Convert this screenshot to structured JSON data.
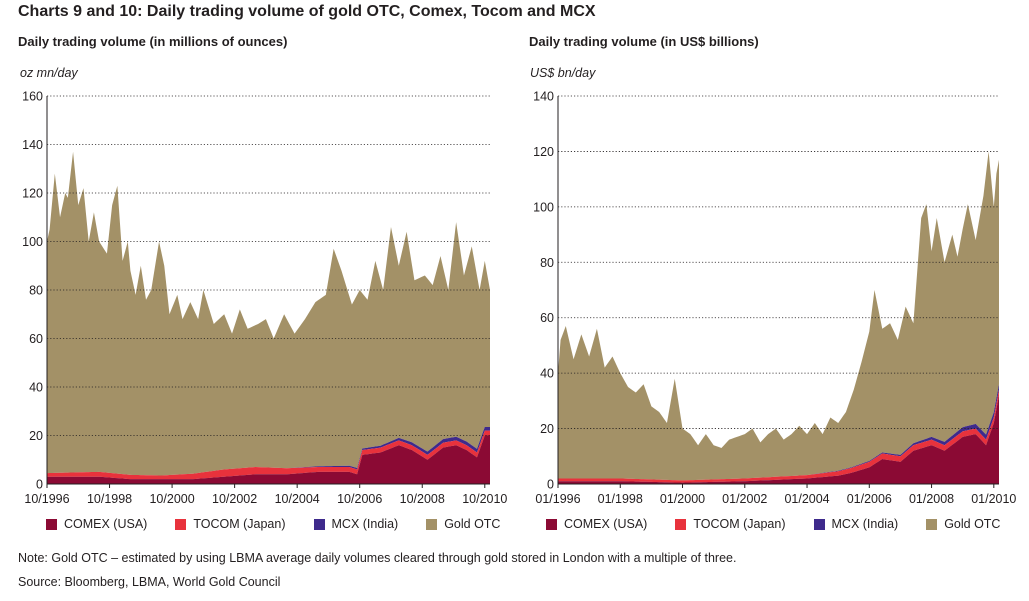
{
  "title": "Charts 9 and 10: Daily trading volume of gold OTC, Comex, Tocom and MCX",
  "note": "Note: Gold OTC – estimated by using LBMA average daily volumes cleared through gold stored in London with a multiple of three.",
  "source": "Source: Bloomberg, LBMA, World Gold Council",
  "colors": {
    "comex": "#8b0a34",
    "tocom": "#e8323c",
    "mcx": "#3e2a8c",
    "otc": "#a39167"
  },
  "legend": {
    "comex": "COMEX (USA)",
    "tocom": "TOCOM (Japan)",
    "mcx": "MCX (India)",
    "otc": "Gold OTC"
  },
  "chart_data": [
    {
      "type": "area",
      "stacked": true,
      "subtitle": "Daily trading volume (in millions of ounces)",
      "unit": "oz mn/day",
      "x_start": "1996-10",
      "x_end": "2010-12",
      "x_ticks": [
        "10/1996",
        "10/1998",
        "10/2000",
        "10/2002",
        "10/2004",
        "10/2006",
        "10/2008",
        "10/2010"
      ],
      "y_ticks": [
        0,
        20,
        40,
        60,
        80,
        100,
        120,
        140,
        160
      ],
      "ylim": [
        0,
        160
      ],
      "grid": "horizontal dotted",
      "series": [
        {
          "name": "COMEX (USA)",
          "key": "comex",
          "points": [
            [
              "1996-10",
              3
            ],
            [
              "1997-06",
              3
            ],
            [
              "1998-06",
              3
            ],
            [
              "1999-06",
              2
            ],
            [
              "2000-06",
              2
            ],
            [
              "2001-06",
              2
            ],
            [
              "2002-06",
              3
            ],
            [
              "2003-06",
              4
            ],
            [
              "2004-06",
              4
            ],
            [
              "2005-06",
              5
            ],
            [
              "2006-06",
              5
            ],
            [
              "2006-09",
              4
            ],
            [
              "2006-11",
              12
            ],
            [
              "2007-06",
              13
            ],
            [
              "2008-01",
              16
            ],
            [
              "2008-06",
              14
            ],
            [
              "2008-12",
              10
            ],
            [
              "2009-06",
              15
            ],
            [
              "2009-11",
              16
            ],
            [
              "2010-03",
              14
            ],
            [
              "2010-07",
              11
            ],
            [
              "2010-10",
              20
            ],
            [
              "2010-12",
              20
            ]
          ]
        },
        {
          "name": "TOCOM (Japan)",
          "key": "tocom",
          "points": [
            [
              "1996-10",
              1.5
            ],
            [
              "1998-06",
              2
            ],
            [
              "2000-06",
              1.5
            ],
            [
              "2002-06",
              3
            ],
            [
              "2003-06",
              3
            ],
            [
              "2005-06",
              2
            ],
            [
              "2006-06",
              2
            ],
            [
              "2007-06",
              2
            ],
            [
              "2008-06",
              2
            ],
            [
              "2009-06",
              2
            ],
            [
              "2010-12",
              2
            ]
          ]
        },
        {
          "name": "MCX (India)",
          "key": "mcx",
          "points": [
            [
              "1996-10",
              0
            ],
            [
              "2004-06",
              0
            ],
            [
              "2005-06",
              0.3
            ],
            [
              "2006-06",
              0.5
            ],
            [
              "2007-06",
              0.8
            ],
            [
              "2008-06",
              1.2
            ],
            [
              "2009-06",
              1.5
            ],
            [
              "2010-12",
              1.5
            ]
          ]
        },
        {
          "name": "Gold OTC",
          "key": "otc",
          "total_points": [
            [
              "1996-10",
              100
            ],
            [
              "1996-11",
              105
            ],
            [
              "1997-01",
              128
            ],
            [
              "1997-03",
              110
            ],
            [
              "1997-05",
              120
            ],
            [
              "1997-06",
              118
            ],
            [
              "1997-08",
              137
            ],
            [
              "1997-10",
              115
            ],
            [
              "1997-12",
              122
            ],
            [
              "1998-02",
              100
            ],
            [
              "1998-04",
              112
            ],
            [
              "1998-06",
              100
            ],
            [
              "1998-09",
              95
            ],
            [
              "1998-11",
              115
            ],
            [
              "1999-01",
              123
            ],
            [
              "1999-03",
              92
            ],
            [
              "1999-05",
              100
            ],
            [
              "1999-06",
              88
            ],
            [
              "1999-08",
              78
            ],
            [
              "1999-10",
              90
            ],
            [
              "1999-12",
              76
            ],
            [
              "2000-02",
              80
            ],
            [
              "2000-05",
              100
            ],
            [
              "2000-07",
              90
            ],
            [
              "2000-09",
              70
            ],
            [
              "2000-12",
              78
            ],
            [
              "2001-02",
              68
            ],
            [
              "2001-05",
              75
            ],
            [
              "2001-08",
              68
            ],
            [
              "2001-10",
              80
            ],
            [
              "2002-02",
              66
            ],
            [
              "2002-06",
              70
            ],
            [
              "2002-09",
              62
            ],
            [
              "2002-12",
              72
            ],
            [
              "2003-03",
              64
            ],
            [
              "2003-07",
              66
            ],
            [
              "2003-10",
              68
            ],
            [
              "2004-01",
              60
            ],
            [
              "2004-05",
              70
            ],
            [
              "2004-09",
              62
            ],
            [
              "2005-01",
              68
            ],
            [
              "2005-05",
              75
            ],
            [
              "2005-09",
              78
            ],
            [
              "2005-12",
              97
            ],
            [
              "2006-03",
              88
            ],
            [
              "2006-07",
              74
            ],
            [
              "2006-10",
              80
            ],
            [
              "2007-01",
              76
            ],
            [
              "2007-04",
              92
            ],
            [
              "2007-07",
              80
            ],
            [
              "2007-10",
              106
            ],
            [
              "2008-01",
              90
            ],
            [
              "2008-04",
              104
            ],
            [
              "2008-07",
              84
            ],
            [
              "2008-11",
              86
            ],
            [
              "2009-02",
              82
            ],
            [
              "2009-05",
              94
            ],
            [
              "2009-08",
              80
            ],
            [
              "2009-11",
              108
            ],
            [
              "2010-02",
              86
            ],
            [
              "2010-05",
              98
            ],
            [
              "2010-08",
              80
            ],
            [
              "2010-10",
              92
            ],
            [
              "2010-12",
              80
            ]
          ]
        }
      ]
    },
    {
      "type": "area",
      "stacked": true,
      "subtitle": "Daily trading volume (in US$ billions)",
      "unit": "US$ bn/day",
      "x_start": "1996-01",
      "x_end": "2010-03",
      "x_ticks": [
        "01/1996",
        "01/1998",
        "01/2000",
        "01/2002",
        "01/2004",
        "01/2006",
        "01/2008",
        "01/2010"
      ],
      "y_ticks": [
        0,
        20,
        40,
        60,
        80,
        100,
        120,
        140
      ],
      "ylim": [
        0,
        140
      ],
      "grid": "horizontal dotted",
      "series": [
        {
          "name": "COMEX (USA)",
          "key": "comex",
          "points": [
            [
              "1996-01",
              1
            ],
            [
              "1998-01",
              1
            ],
            [
              "2000-01",
              0.5
            ],
            [
              "2002-01",
              1
            ],
            [
              "2003-01",
              1.5
            ],
            [
              "2004-01",
              2
            ],
            [
              "2005-01",
              3
            ],
            [
              "2005-06",
              4
            ],
            [
              "2006-01",
              6
            ],
            [
              "2006-06",
              9
            ],
            [
              "2007-01",
              8
            ],
            [
              "2007-06",
              12
            ],
            [
              "2008-01",
              14
            ],
            [
              "2008-06",
              12
            ],
            [
              "2009-01",
              17
            ],
            [
              "2009-06",
              18
            ],
            [
              "2009-10",
              14
            ],
            [
              "2010-01",
              22
            ],
            [
              "2010-03",
              32
            ]
          ]
        },
        {
          "name": "TOCOM (Japan)",
          "key": "tocom",
          "points": [
            [
              "1996-01",
              1
            ],
            [
              "1998-01",
              1
            ],
            [
              "2000-01",
              0.8
            ],
            [
              "2002-01",
              1
            ],
            [
              "2004-01",
              1.2
            ],
            [
              "2006-01",
              2
            ],
            [
              "2008-01",
              2
            ],
            [
              "2010-03",
              2
            ]
          ]
        },
        {
          "name": "MCX (India)",
          "key": "mcx",
          "points": [
            [
              "1996-01",
              0
            ],
            [
              "2004-01",
              0
            ],
            [
              "2005-01",
              0.2
            ],
            [
              "2006-01",
              0.3
            ],
            [
              "2007-01",
              0.5
            ],
            [
              "2008-01",
              1
            ],
            [
              "2009-01",
              1.5
            ],
            [
              "2010-03",
              2
            ]
          ]
        },
        {
          "name": "Gold OTC",
          "key": "otc",
          "total_points": [
            [
              "1996-01",
              40
            ],
            [
              "1996-02",
              52
            ],
            [
              "1996-04",
              57
            ],
            [
              "1996-07",
              45
            ],
            [
              "1996-10",
              54
            ],
            [
              "1997-01",
              46
            ],
            [
              "1997-04",
              56
            ],
            [
              "1997-07",
              42
            ],
            [
              "1997-10",
              46
            ],
            [
              "1998-01",
              40
            ],
            [
              "1998-04",
              35
            ],
            [
              "1998-07",
              33
            ],
            [
              "1998-10",
              36
            ],
            [
              "1999-01",
              28
            ],
            [
              "1999-04",
              26
            ],
            [
              "1999-07",
              22
            ],
            [
              "1999-10",
              38
            ],
            [
              "2000-01",
              20
            ],
            [
              "2000-04",
              18
            ],
            [
              "2000-07",
              14
            ],
            [
              "2000-10",
              18
            ],
            [
              "2001-01",
              14
            ],
            [
              "2001-04",
              13
            ],
            [
              "2001-07",
              16
            ],
            [
              "2001-10",
              17
            ],
            [
              "2002-01",
              18
            ],
            [
              "2002-04",
              20
            ],
            [
              "2002-07",
              15
            ],
            [
              "2002-10",
              18
            ],
            [
              "2003-01",
              20
            ],
            [
              "2003-04",
              16
            ],
            [
              "2003-07",
              18
            ],
            [
              "2003-10",
              21
            ],
            [
              "2004-01",
              18
            ],
            [
              "2004-04",
              22
            ],
            [
              "2004-07",
              18
            ],
            [
              "2004-10",
              24
            ],
            [
              "2005-01",
              22
            ],
            [
              "2005-04",
              26
            ],
            [
              "2005-07",
              34
            ],
            [
              "2005-10",
              44
            ],
            [
              "2006-01",
              55
            ],
            [
              "2006-03",
              70
            ],
            [
              "2006-06",
              56
            ],
            [
              "2006-09",
              58
            ],
            [
              "2006-12",
              52
            ],
            [
              "2007-03",
              64
            ],
            [
              "2007-06",
              58
            ],
            [
              "2007-09",
              96
            ],
            [
              "2007-11",
              101
            ],
            [
              "2008-01",
              84
            ],
            [
              "2008-03",
              96
            ],
            [
              "2008-06",
              80
            ],
            [
              "2008-09",
              90
            ],
            [
              "2008-11",
              82
            ],
            [
              "2009-01",
              92
            ],
            [
              "2009-03",
              101
            ],
            [
              "2009-06",
              88
            ],
            [
              "2009-09",
              104
            ],
            [
              "2009-11",
              120
            ],
            [
              "2010-01",
              100
            ],
            [
              "2010-02",
              112
            ],
            [
              "2010-03",
              117
            ]
          ]
        }
      ]
    }
  ]
}
